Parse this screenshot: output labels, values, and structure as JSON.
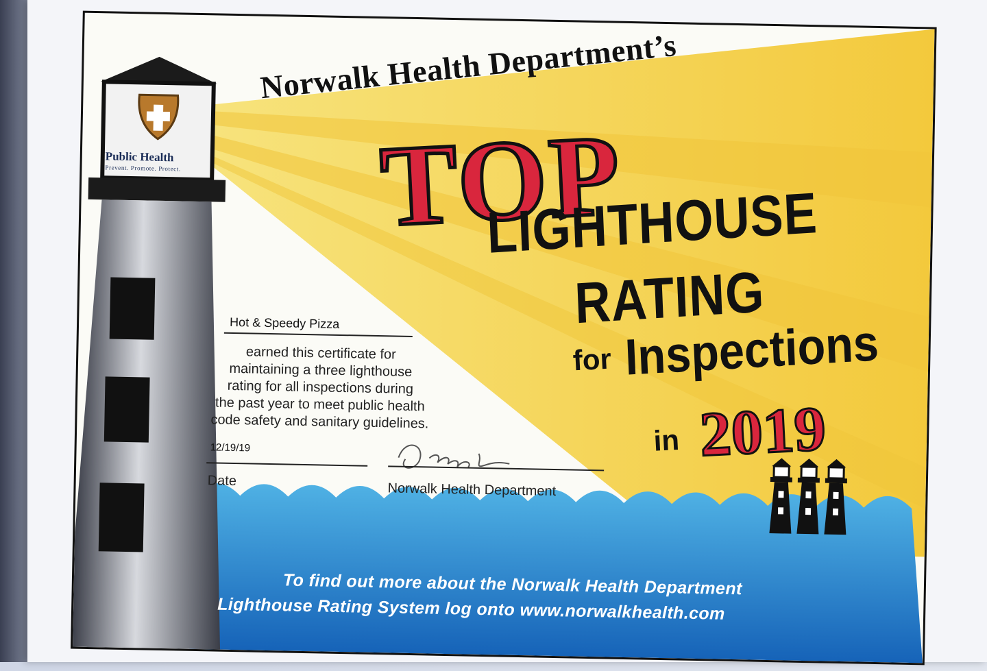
{
  "certificate": {
    "department_title": "Norwalk Health Department’s",
    "top_word": "TOP",
    "line_lighthouse": "LIGHTHOUSE",
    "line_rating": "RATING",
    "line_for": "for",
    "line_inspections": "Inspections",
    "line_in": "in",
    "year": "2019",
    "recipient": "Hot & Speedy Pizza",
    "body": "earned this certificate for\nmaintaining a three lighthouse\nrating for all inspections during\nthe past year to meet public health\ncode safety and sanitary guidelines.",
    "date_value": "12/19/19",
    "date_label": "Date",
    "signature_label": "Norwalk Health Department",
    "footer_line1": "To find out more about the Norwalk Health Department",
    "footer_line2": "Lighthouse Rating System log onto www.norwalkhealth.com"
  },
  "logo": {
    "name": "Public Health",
    "tagline": "Prevent. Promote. Protect."
  },
  "rating": {
    "lighthouse_count": 3
  },
  "colors": {
    "accent_red": "#d9263d",
    "beam_yellow": "#f5d65a",
    "water_blue": "#2f8fd0",
    "ink": "#111111"
  }
}
